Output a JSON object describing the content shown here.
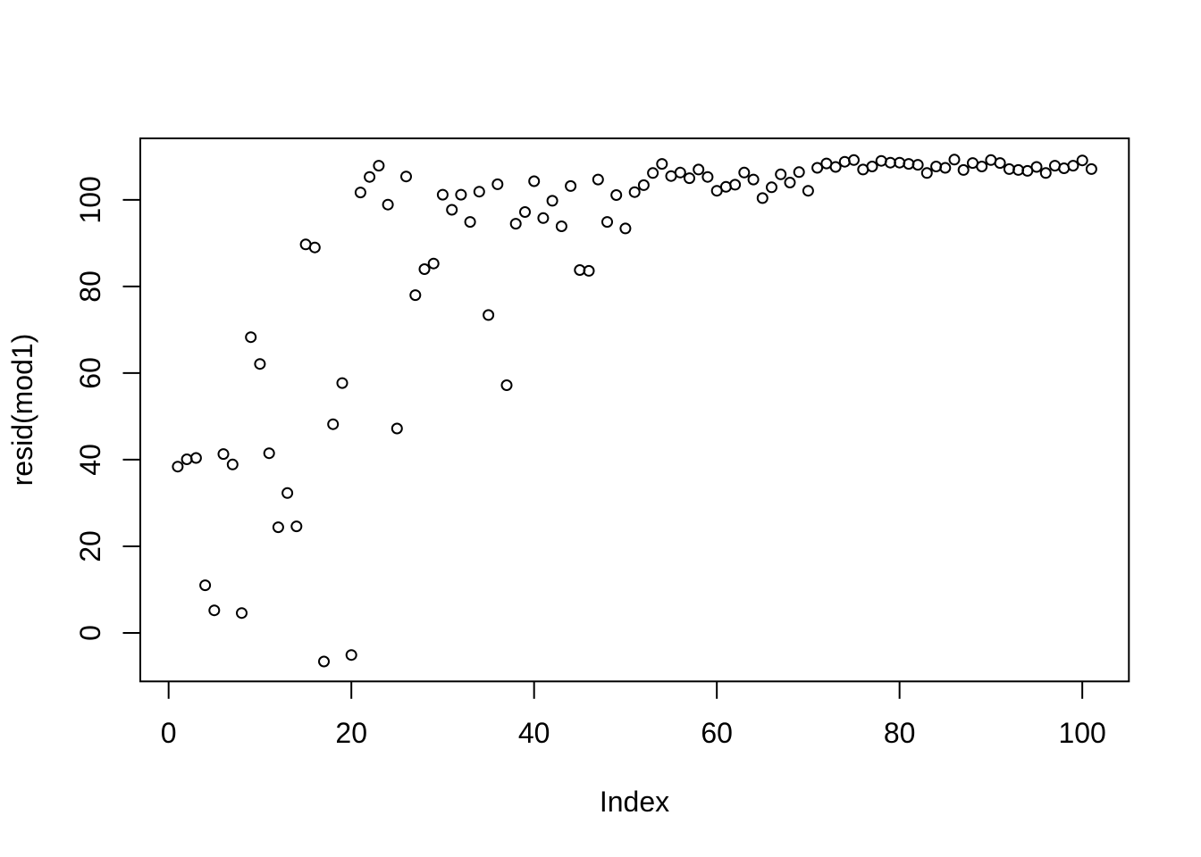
{
  "figure": {
    "background_color": "#ffffff",
    "foreground_color": "#000000"
  },
  "chart_data": {
    "type": "scatter",
    "title": "",
    "xlabel": "Index",
    "ylabel": "resid(mod1)",
    "marker": "open-circle",
    "marker_color": "#000000",
    "grid": false,
    "legend": null,
    "xlim": [
      -3.1,
      105.1
    ],
    "ylim": [
      -11.2,
      114.2
    ],
    "xticks": [
      0,
      20,
      40,
      60,
      80,
      100
    ],
    "yticks": [
      0,
      20,
      40,
      60,
      80,
      100
    ],
    "x": [
      1,
      2,
      3,
      4,
      5,
      6,
      7,
      8,
      9,
      10,
      11,
      12,
      13,
      14,
      15,
      16,
      17,
      18,
      19,
      20,
      21,
      22,
      23,
      24,
      25,
      26,
      27,
      28,
      29,
      30,
      31,
      32,
      33,
      34,
      35,
      36,
      37,
      38,
      39,
      40,
      41,
      42,
      43,
      44,
      45,
      46,
      47,
      48,
      49,
      50,
      51,
      52,
      53,
      54,
      55,
      56,
      57,
      58,
      59,
      60,
      61,
      62,
      63,
      64,
      65,
      66,
      67,
      68,
      69,
      70,
      71,
      72,
      73,
      74,
      75,
      76,
      77,
      78,
      79,
      80,
      81,
      82,
      83,
      84,
      85,
      86,
      87,
      88,
      89,
      90,
      91,
      92,
      93,
      94,
      95,
      96,
      97,
      98,
      99,
      100,
      101
    ],
    "y": [
      38.4,
      40.1,
      40.4,
      11.0,
      5.2,
      41.3,
      38.9,
      4.6,
      68.3,
      62.1,
      41.5,
      24.4,
      32.3,
      24.6,
      89.7,
      89.0,
      -6.6,
      48.2,
      57.7,
      -5.1,
      101.7,
      105.3,
      107.9,
      98.9,
      47.2,
      105.4,
      78.0,
      84.0,
      85.3,
      101.2,
      97.7,
      101.2,
      94.9,
      101.9,
      73.4,
      103.6,
      57.2,
      94.5,
      97.2,
      104.3,
      95.8,
      99.8,
      93.9,
      103.2,
      83.8,
      83.6,
      104.7,
      94.9,
      101.1,
      93.4,
      101.8,
      103.4,
      106.2,
      108.3,
      105.5,
      106.3,
      105.0,
      107.0,
      105.3,
      102.1,
      103.0,
      103.5,
      106.3,
      104.7,
      100.4,
      102.9,
      105.9,
      104.0,
      106.4,
      102.1,
      107.4,
      108.4,
      107.6,
      108.8,
      109.2,
      107.0,
      107.7,
      109.0,
      108.6,
      108.6,
      108.3,
      108.1,
      106.2,
      107.7,
      107.4,
      109.3,
      106.9,
      108.5,
      107.7,
      109.2,
      108.5,
      107.1,
      106.9,
      106.7,
      107.6,
      106.2,
      107.9,
      107.3,
      107.9,
      109.1,
      107.1
    ]
  }
}
